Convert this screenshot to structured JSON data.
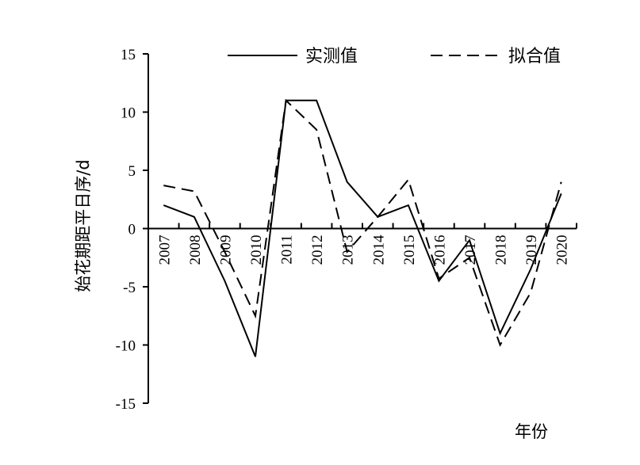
{
  "chart_data": {
    "type": "line",
    "xlabel": "年份",
    "ylabel": "始花期距平日序/d",
    "categories": [
      "2007",
      "2008",
      "2009",
      "2010",
      "2011",
      "2012",
      "2013",
      "2014",
      "2015",
      "2016",
      "2017",
      "2018",
      "2019",
      "2020"
    ],
    "series": [
      {
        "name": "实测值",
        "style": "solid",
        "color": "#000000",
        "values": [
          2,
          1,
          -4.5,
          -11,
          11,
          11,
          4,
          1,
          2,
          -4.5,
          -1,
          -9,
          -3.5,
          3
        ]
      },
      {
        "name": "拟合值",
        "style": "dashed",
        "color": "#000000",
        "values": [
          3.7,
          3.2,
          -2,
          -7.5,
          11,
          8.5,
          -2,
          1,
          4.2,
          -4.3,
          -2.5,
          -10,
          -5.5,
          4
        ]
      }
    ],
    "ylim": [
      -15,
      15
    ],
    "yticks": [
      -15,
      -10,
      -5,
      0,
      5,
      10,
      15
    ],
    "legend_position": "top",
    "grid": false
  }
}
